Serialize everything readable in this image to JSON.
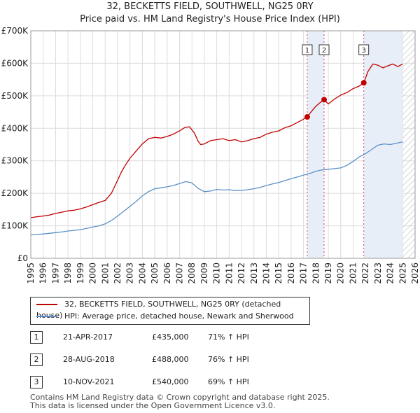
{
  "titles": {
    "line1": "32, BECKETTS FIELD, SOUTHWELL, NG25 0RY",
    "line2": "Price paid vs. HM Land Registry's House Price Index (HPI)"
  },
  "legend": {
    "property": "32, BECKETTS FIELD, SOUTHWELL, NG25 0RY (detached house)",
    "hpi": "HPI: Average price, detached house, Newark and Sherwood"
  },
  "colors": {
    "property": "#c00000",
    "hpi": "#5a8fc8",
    "shade": "#e8eef8",
    "hatch": "#c8c8c8",
    "marker_line": "#d04060"
  },
  "sales": [
    {
      "num": "1",
      "date": "21-APR-2017",
      "price": "£435,000",
      "hpi": "71% ↑ HPI"
    },
    {
      "num": "2",
      "date": "28-AUG-2018",
      "price": "£488,000",
      "hpi": "76% ↑ HPI"
    },
    {
      "num": "3",
      "date": "10-NOV-2021",
      "price": "£540,000",
      "hpi": "69% ↑ HPI"
    }
  ],
  "footer": {
    "line1": "Contains HM Land Registry data © Crown copyright and database right 2025.",
    "line2": "This data is licensed under the Open Government Licence v3.0."
  },
  "chart_data": {
    "type": "line",
    "title": "Price paid vs. HM Land Registry's House Price Index (HPI)",
    "xlim": [
      1995,
      2026
    ],
    "ylim": [
      0,
      700000
    ],
    "x_ticks": [
      "1995",
      "1996",
      "1997",
      "1998",
      "1999",
      "2000",
      "2001",
      "2002",
      "2003",
      "2004",
      "2005",
      "2006",
      "2007",
      "2008",
      "2009",
      "2010",
      "2011",
      "2012",
      "2013",
      "2014",
      "2015",
      "2016",
      "2017",
      "2018",
      "2019",
      "2020",
      "2021",
      "2022",
      "2023",
      "2024",
      "2025",
      "2026"
    ],
    "y_ticks": [
      {
        "value": 0,
        "label": "£0"
      },
      {
        "value": 100000,
        "label": "£100K"
      },
      {
        "value": 200000,
        "label": "£200K"
      },
      {
        "value": 300000,
        "label": "£300K"
      },
      {
        "value": 400000,
        "label": "£400K"
      },
      {
        "value": 500000,
        "label": "£500K"
      },
      {
        "value": 600000,
        "label": "£600K"
      },
      {
        "value": 700000,
        "label": "£700K"
      }
    ],
    "shaded_periods": [
      [
        2017.3,
        2018.66
      ],
      [
        2021.86,
        2025.0
      ]
    ],
    "future_from": 2025.0,
    "markers": [
      {
        "label": "1",
        "x": 2017.3,
        "y": 435000
      },
      {
        "label": "2",
        "x": 2018.66,
        "y": 488000
      },
      {
        "label": "3",
        "x": 2021.86,
        "y": 540000
      }
    ],
    "series": [
      {
        "name": "32, BECKETTS FIELD, SOUTHWELL, NG25 0RY (detached house)",
        "x": [
          1995,
          1995.5,
          1996,
          1996.5,
          1997,
          1997.5,
          1998,
          1998.5,
          1999,
          1999.5,
          2000,
          2000.5,
          2001,
          2001.5,
          2002,
          2002.3,
          2002.6,
          2003,
          2003.5,
          2004,
          2004.5,
          2005,
          2005.5,
          2006,
          2006.5,
          2007,
          2007.4,
          2007.8,
          2008.2,
          2008.5,
          2008.7,
          2009,
          2009.5,
          2010,
          2010.5,
          2011,
          2011.5,
          2012,
          2012.5,
          2013,
          2013.5,
          2014,
          2014.5,
          2015,
          2015.5,
          2016,
          2016.5,
          2017,
          2017.3,
          2017.6,
          2018,
          2018.3,
          2018.66,
          2019,
          2019.5,
          2020,
          2020.5,
          2021,
          2021.5,
          2021.86,
          2022.2,
          2022.6,
          2023,
          2023.4,
          2023.8,
          2024.2,
          2024.6,
          2025.0
        ],
        "values": [
          125000,
          128000,
          130000,
          133000,
          138000,
          142000,
          146000,
          148000,
          152000,
          158000,
          165000,
          172000,
          178000,
          200000,
          240000,
          265000,
          285000,
          308000,
          330000,
          352000,
          368000,
          372000,
          370000,
          375000,
          382000,
          392000,
          402000,
          405000,
          385000,
          360000,
          350000,
          352000,
          362000,
          365000,
          368000,
          362000,
          365000,
          358000,
          362000,
          368000,
          372000,
          382000,
          388000,
          392000,
          402000,
          408000,
          418000,
          428000,
          435000,
          450000,
          468000,
          478000,
          488000,
          475000,
          490000,
          502000,
          510000,
          522000,
          530000,
          540000,
          575000,
          598000,
          594000,
          586000,
          592000,
          598000,
          590000,
          598000
        ]
      },
      {
        "name": "HPI: Average price, detached house, Newark and Sherwood",
        "x": [
          1995,
          1995.5,
          1996,
          1996.5,
          1997,
          1997.5,
          1998,
          1998.5,
          1999,
          1999.5,
          2000,
          2000.5,
          2001,
          2001.5,
          2002,
          2002.5,
          2003,
          2003.5,
          2004,
          2004.5,
          2005,
          2005.5,
          2006,
          2006.5,
          2007,
          2007.5,
          2008,
          2008.5,
          2009,
          2009.5,
          2010,
          2010.5,
          2011,
          2011.5,
          2012,
          2012.5,
          2013,
          2013.5,
          2014,
          2014.5,
          2015,
          2015.5,
          2016,
          2016.5,
          2017,
          2017.5,
          2018,
          2018.5,
          2019,
          2019.5,
          2020,
          2020.5,
          2021,
          2021.5,
          2022,
          2022.5,
          2023,
          2023.5,
          2024,
          2024.5,
          2025.0
        ],
        "values": [
          72000,
          73000,
          75000,
          77000,
          79000,
          81000,
          84000,
          86000,
          88000,
          92000,
          96000,
          100000,
          106000,
          116000,
          130000,
          145000,
          160000,
          175000,
          192000,
          205000,
          214000,
          217000,
          220000,
          224000,
          230000,
          236000,
          232000,
          215000,
          205000,
          207000,
          212000,
          210000,
          211000,
          208000,
          209000,
          211000,
          214000,
          218000,
          224000,
          229000,
          233000,
          239000,
          245000,
          250000,
          256000,
          261000,
          268000,
          272000,
          274000,
          276000,
          278000,
          286000,
          298000,
          312000,
          322000,
          335000,
          348000,
          352000,
          350000,
          354000,
          358000
        ]
      }
    ]
  }
}
